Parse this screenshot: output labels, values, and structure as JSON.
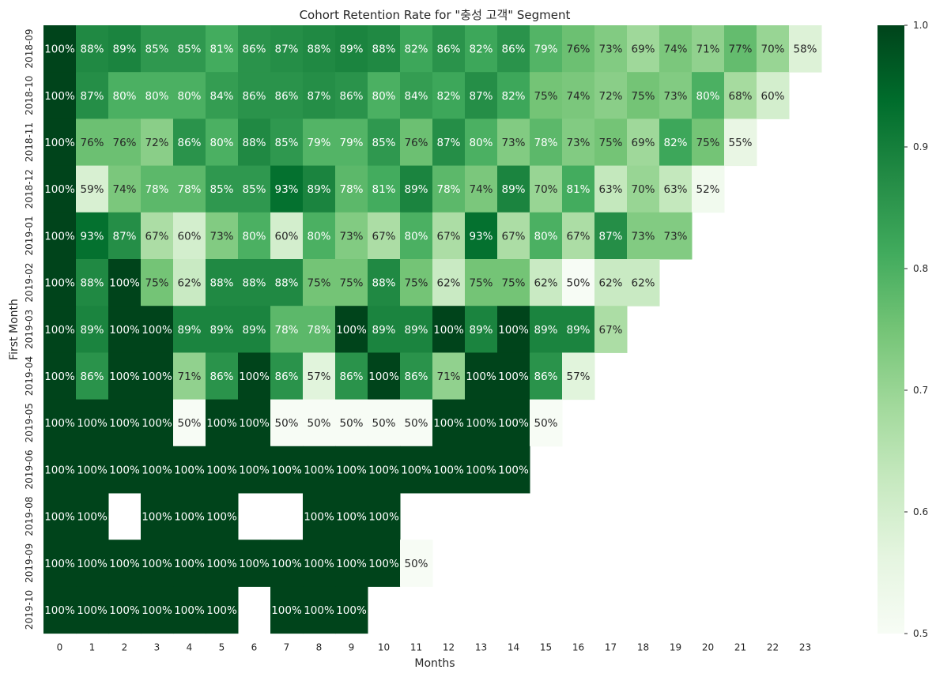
{
  "chart_data": {
    "type": "heatmap",
    "title": "Cohort Retention Rate for \"충성 고객\" Segment",
    "xlabel": "Months",
    "ylabel": "First Month",
    "x_categories": [
      "0",
      "1",
      "2",
      "3",
      "4",
      "5",
      "6",
      "7",
      "8",
      "9",
      "10",
      "11",
      "12",
      "13",
      "14",
      "15",
      "16",
      "17",
      "18",
      "19",
      "20",
      "21",
      "22",
      "23"
    ],
    "y_categories": [
      "2018-09",
      "2018-10",
      "2018-11",
      "2018-12",
      "2019-01",
      "2019-02",
      "2019-03",
      "2019-04",
      "2019-05",
      "2019-06",
      "2019-08",
      "2019-09",
      "2019-10"
    ],
    "values": [
      [
        1.0,
        0.88,
        0.89,
        0.85,
        0.85,
        0.81,
        0.86,
        0.87,
        0.88,
        0.89,
        0.88,
        0.82,
        0.86,
        0.82,
        0.86,
        0.79,
        0.76,
        0.73,
        0.69,
        0.74,
        0.71,
        0.77,
        0.7,
        0.58
      ],
      [
        1.0,
        0.87,
        0.8,
        0.8,
        0.8,
        0.84,
        0.86,
        0.86,
        0.87,
        0.86,
        0.8,
        0.84,
        0.82,
        0.87,
        0.82,
        0.75,
        0.74,
        0.72,
        0.75,
        0.73,
        0.8,
        0.68,
        0.6,
        null
      ],
      [
        1.0,
        0.76,
        0.76,
        0.72,
        0.86,
        0.8,
        0.88,
        0.85,
        0.79,
        0.79,
        0.85,
        0.76,
        0.87,
        0.8,
        0.73,
        0.78,
        0.73,
        0.75,
        0.69,
        0.82,
        0.75,
        0.55,
        null,
        null
      ],
      [
        1.0,
        0.59,
        0.74,
        0.78,
        0.78,
        0.85,
        0.85,
        0.93,
        0.89,
        0.78,
        0.81,
        0.89,
        0.78,
        0.74,
        0.89,
        0.7,
        0.81,
        0.63,
        0.7,
        0.63,
        0.52,
        null,
        null,
        null
      ],
      [
        1.0,
        0.93,
        0.87,
        0.67,
        0.6,
        0.73,
        0.8,
        0.6,
        0.8,
        0.73,
        0.67,
        0.8,
        0.67,
        0.93,
        0.67,
        0.8,
        0.67,
        0.87,
        0.73,
        0.73,
        null,
        null,
        null,
        null
      ],
      [
        1.0,
        0.88,
        1.0,
        0.75,
        0.62,
        0.88,
        0.88,
        0.88,
        0.75,
        0.75,
        0.88,
        0.75,
        0.62,
        0.75,
        0.75,
        0.62,
        0.5,
        0.62,
        0.62,
        null,
        null,
        null,
        null,
        null
      ],
      [
        1.0,
        0.89,
        1.0,
        1.0,
        0.89,
        0.89,
        0.89,
        0.78,
        0.78,
        1.0,
        0.89,
        0.89,
        1.0,
        0.89,
        1.0,
        0.89,
        0.89,
        0.67,
        null,
        null,
        null,
        null,
        null,
        null
      ],
      [
        1.0,
        0.86,
        1.0,
        1.0,
        0.71,
        0.86,
        1.0,
        0.86,
        0.57,
        0.86,
        1.0,
        0.86,
        0.71,
        1.0,
        1.0,
        0.86,
        0.57,
        null,
        null,
        null,
        null,
        null,
        null,
        null
      ],
      [
        1.0,
        1.0,
        1.0,
        1.0,
        0.5,
        1.0,
        1.0,
        0.5,
        0.5,
        0.5,
        0.5,
        0.5,
        1.0,
        1.0,
        1.0,
        0.5,
        null,
        null,
        null,
        null,
        null,
        null,
        null,
        null
      ],
      [
        1.0,
        1.0,
        1.0,
        1.0,
        1.0,
        1.0,
        1.0,
        1.0,
        1.0,
        1.0,
        1.0,
        1.0,
        1.0,
        1.0,
        1.0,
        null,
        null,
        null,
        null,
        null,
        null,
        null,
        null,
        null
      ],
      [
        1.0,
        1.0,
        null,
        1.0,
        1.0,
        1.0,
        null,
        null,
        1.0,
        1.0,
        1.0,
        null,
        null,
        null,
        null,
        null,
        null,
        null,
        null,
        null,
        null,
        null,
        null,
        null
      ],
      [
        1.0,
        1.0,
        1.0,
        1.0,
        1.0,
        1.0,
        1.0,
        1.0,
        1.0,
        1.0,
        1.0,
        0.5,
        null,
        null,
        null,
        null,
        null,
        null,
        null,
        null,
        null,
        null,
        null,
        null
      ],
      [
        1.0,
        1.0,
        1.0,
        1.0,
        1.0,
        1.0,
        null,
        1.0,
        1.0,
        1.0,
        null,
        null,
        null,
        null,
        null,
        null,
        null,
        null,
        null,
        null,
        null,
        null,
        null,
        null
      ]
    ],
    "annotation_format": "percent",
    "colorbar": {
      "min": 0.5,
      "max": 1.0,
      "ticks": [
        "0.5",
        "0.6",
        "0.7",
        "0.8",
        "0.9",
        "1.0"
      ],
      "colormap": "Greens",
      "colors": [
        "#f7fcf5",
        "#e5f5e0",
        "#c7e9c0",
        "#a1d99b",
        "#74c476",
        "#41ab5d",
        "#238b45",
        "#006d2c",
        "#00441b"
      ]
    },
    "grid": false,
    "legend": "colorbar-right"
  }
}
